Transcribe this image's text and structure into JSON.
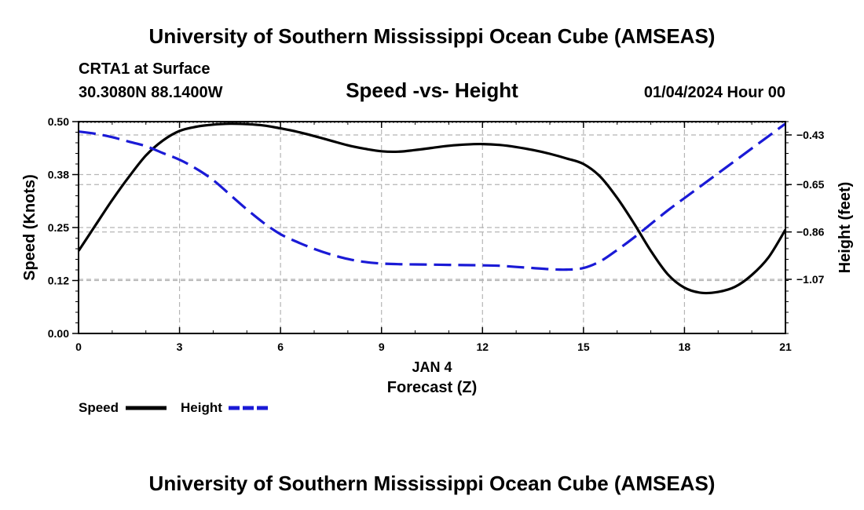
{
  "page_title": "University of Southern Mississippi Ocean Cube (AMSEAS)",
  "footer_title": "University of Southern Mississippi Ocean Cube (AMSEAS)",
  "station": {
    "name": "CRTA1 at Surface",
    "coords": "30.3080N  88.1400W",
    "datetime": "01/04/2024 Hour 00"
  },
  "chart_data": {
    "type": "line",
    "title": "Speed -vs- Height",
    "xlabel_date": "JAN 4",
    "xlabel": "Forecast (Z)",
    "ylabel_left": "Speed (Knots)",
    "ylabel_right": "Height (feet)",
    "xlim": [
      0,
      21
    ],
    "x_ticks": [
      0,
      3,
      6,
      9,
      12,
      15,
      18,
      21
    ],
    "x_tick_labels": [
      "0",
      "3",
      "6",
      "9",
      "12",
      "15",
      "18",
      "21"
    ],
    "ylim_left": [
      0,
      0.5
    ],
    "y_ticks_left": [
      0,
      0.125,
      0.25,
      0.375,
      0.5
    ],
    "y_tick_labels_left": [
      "0.00",
      "0.12",
      "0.25",
      "0.38",
      "0.50"
    ],
    "ylim_right": [
      -1.31,
      -0.371
    ],
    "y_ticks_right": [
      -1.07,
      -0.86,
      -0.65,
      -0.43
    ],
    "y_tick_labels_right": [
      "−1.07",
      "−0.86",
      "−0.65",
      "−0.43"
    ],
    "grid": true,
    "series": [
      {
        "name": "Speed",
        "axis": "left",
        "color": "#000000",
        "dash": "solid",
        "x": [
          0,
          0.5,
          1,
          1.5,
          2,
          2.5,
          3,
          3.5,
          4,
          4.5,
          5,
          5.5,
          6,
          6.5,
          7,
          7.5,
          8,
          8.5,
          9,
          9.5,
          10,
          10.5,
          11,
          11.5,
          12,
          12.5,
          13,
          13.5,
          14,
          14.5,
          15,
          15.5,
          16,
          16.5,
          17,
          17.5,
          18,
          18.5,
          19,
          19.5,
          20,
          20.5,
          21
        ],
        "values": [
          0.195,
          0.255,
          0.315,
          0.37,
          0.42,
          0.455,
          0.478,
          0.488,
          0.493,
          0.495,
          0.494,
          0.491,
          0.484,
          0.476,
          0.466,
          0.455,
          0.444,
          0.436,
          0.43,
          0.429,
          0.433,
          0.438,
          0.443,
          0.446,
          0.447,
          0.445,
          0.44,
          0.433,
          0.424,
          0.413,
          0.4,
          0.37,
          0.32,
          0.26,
          0.195,
          0.14,
          0.108,
          0.096,
          0.098,
          0.11,
          0.138,
          0.18,
          0.245
        ]
      },
      {
        "name": "Height",
        "axis": "right",
        "color": "#1a1ad6",
        "dash": "dashed",
        "x": [
          0,
          0.5,
          1,
          1.5,
          2,
          2.5,
          3,
          3.5,
          4,
          4.5,
          5,
          5.5,
          6,
          6.5,
          7,
          7.5,
          8,
          8.5,
          9,
          9.5,
          10,
          10.5,
          11,
          11.5,
          12,
          12.5,
          13,
          13.5,
          14,
          14.5,
          15,
          15.5,
          16,
          16.5,
          17,
          17.5,
          18,
          18.5,
          19,
          19.5,
          20,
          20.5,
          21
        ],
        "values": [
          -0.415,
          -0.425,
          -0.44,
          -0.46,
          -0.48,
          -0.51,
          -0.54,
          -0.58,
          -0.63,
          -0.695,
          -0.76,
          -0.82,
          -0.87,
          -0.905,
          -0.935,
          -0.96,
          -0.98,
          -0.993,
          -1.0,
          -1.003,
          -1.004,
          -1.005,
          -1.006,
          -1.007,
          -1.008,
          -1.01,
          -1.015,
          -1.02,
          -1.025,
          -1.027,
          -1.02,
          -0.99,
          -0.94,
          -0.885,
          -0.825,
          -0.765,
          -0.71,
          -0.655,
          -0.6,
          -0.545,
          -0.49,
          -0.435,
          -0.38
        ]
      }
    ]
  },
  "legend": {
    "speed_label": "Speed",
    "height_label": "Height"
  }
}
